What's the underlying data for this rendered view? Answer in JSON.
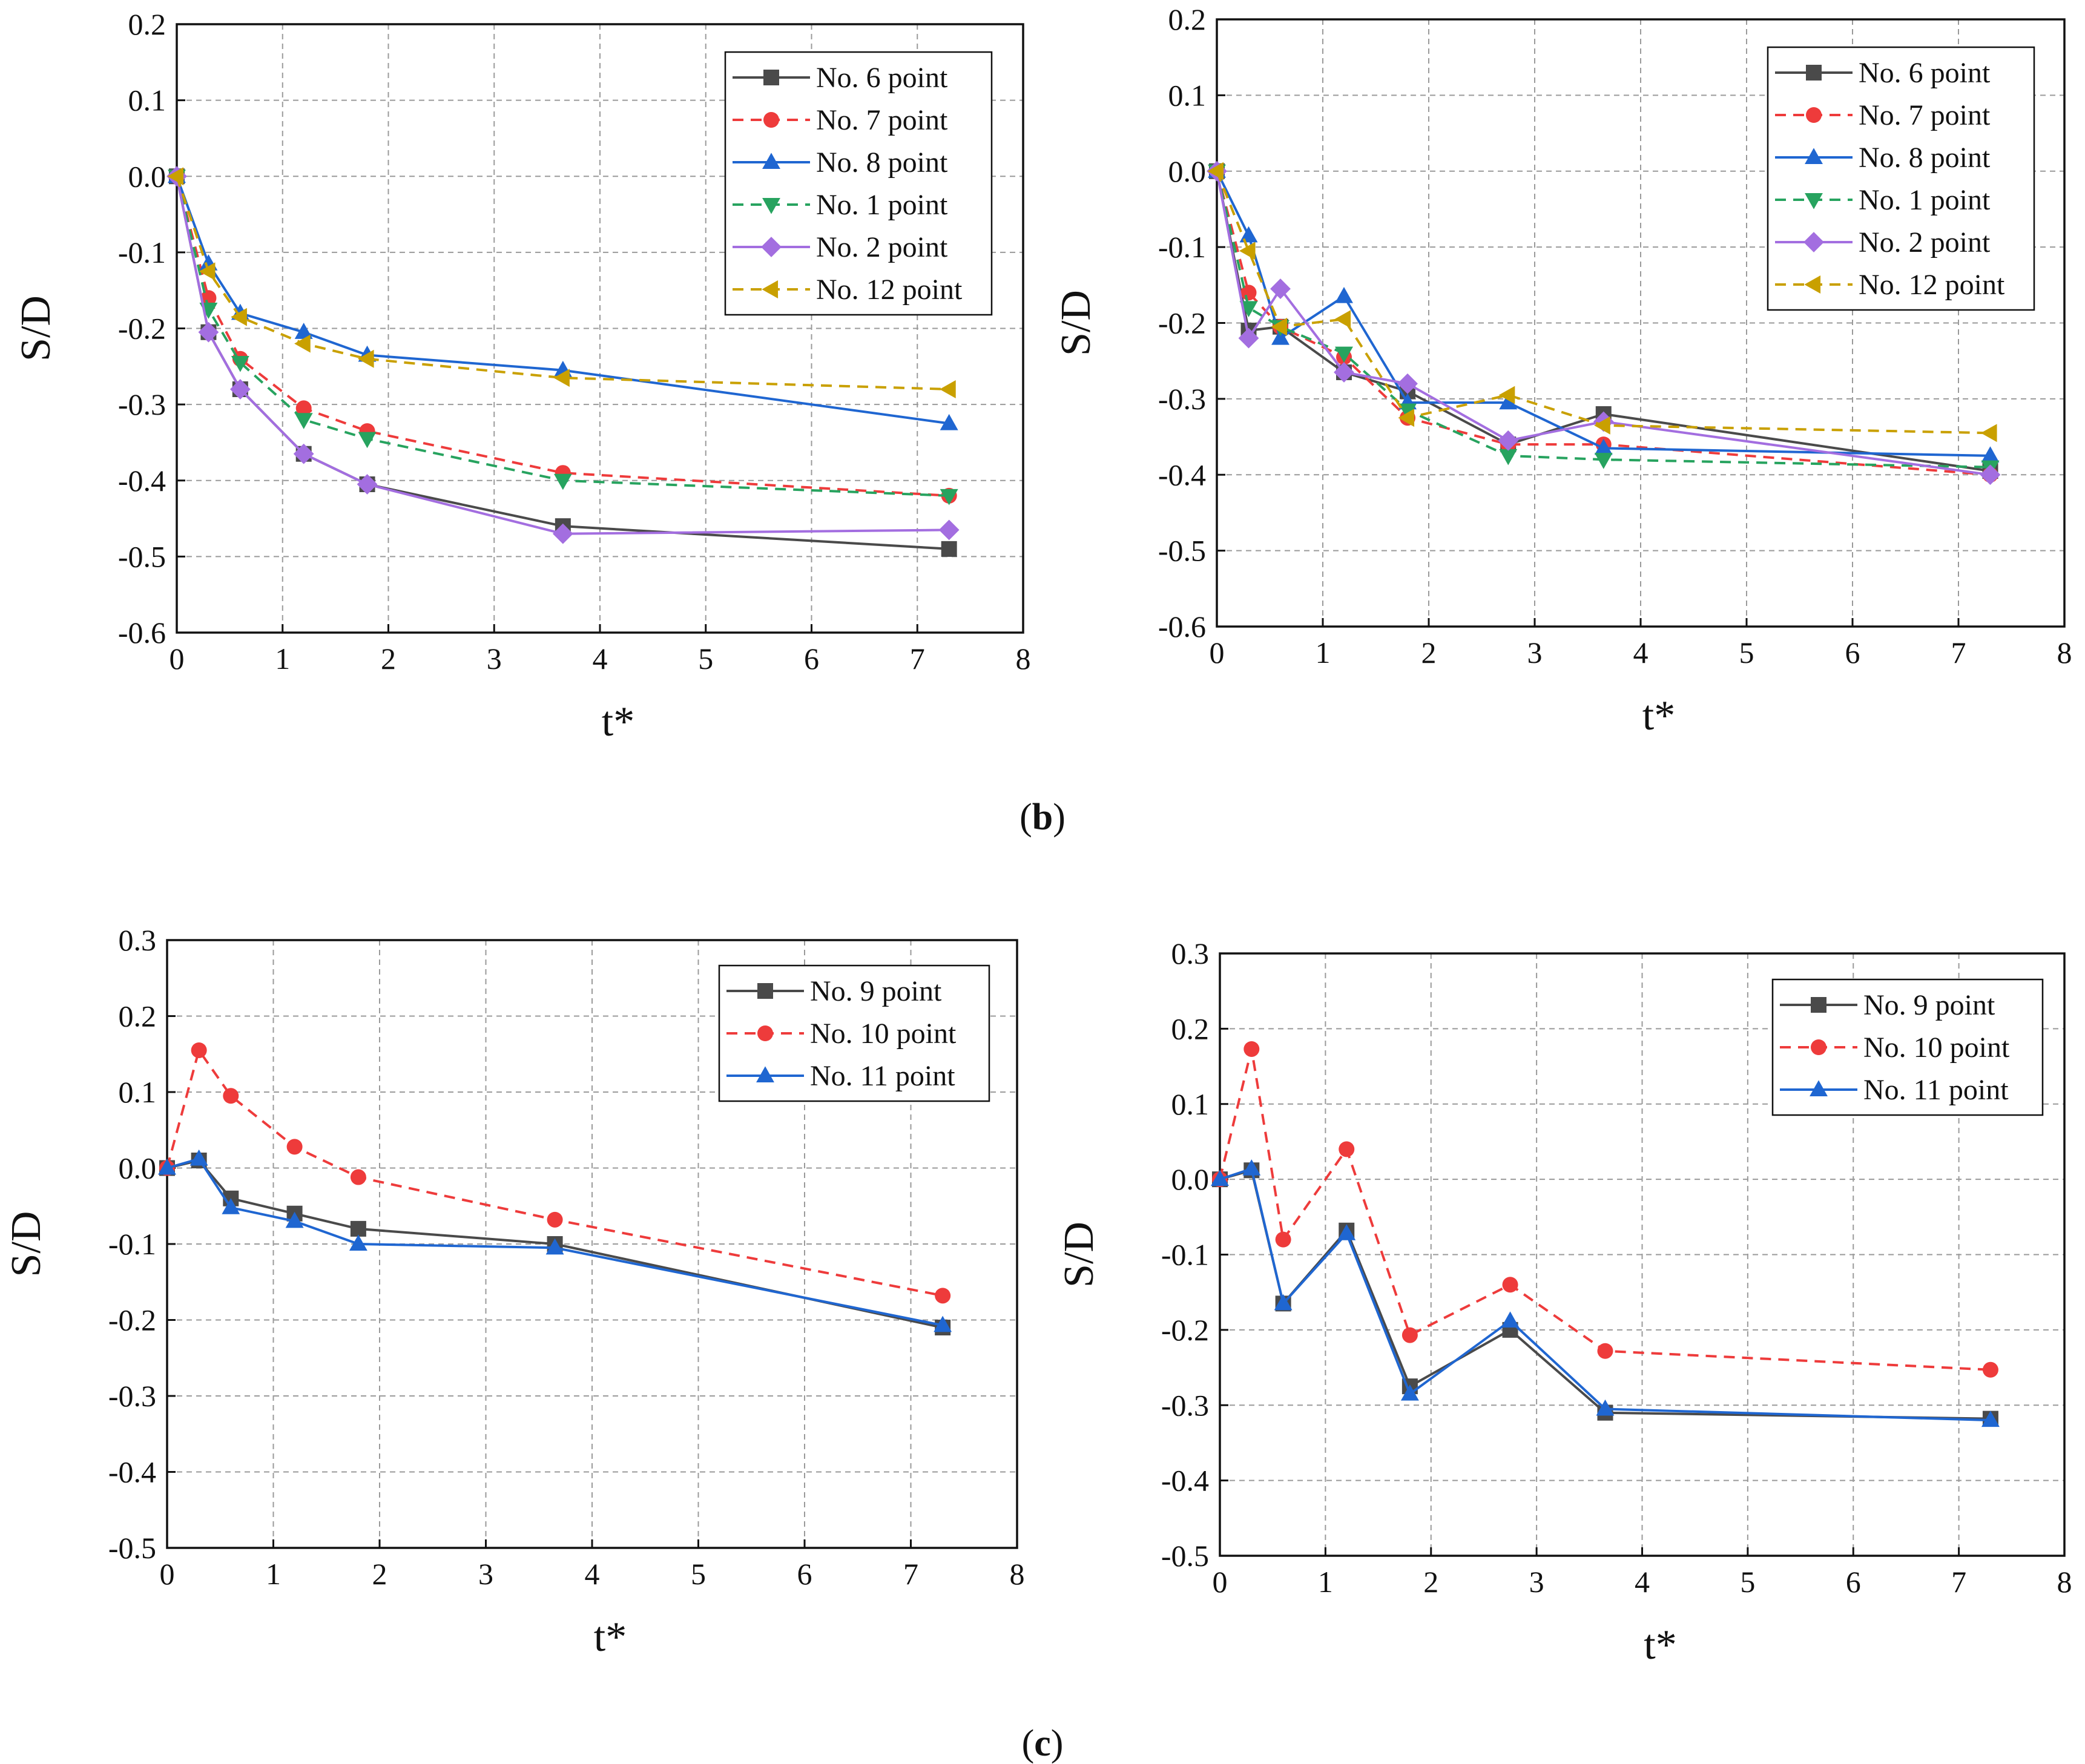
{
  "captions": {
    "b_open": "(",
    "b_letter": "b",
    "b_close": ")",
    "c_open": "(",
    "c_letter": "c",
    "c_close": ")"
  },
  "styles": {
    "No. 6 point": {
      "color": "#4a4a4a",
      "dash": false,
      "marker": "square"
    },
    "No. 7 point": {
      "color": "#ee3b3b",
      "dash": true,
      "marker": "circle",
      "noLine": false
    },
    "No. 8 point": {
      "color": "#1f66d1",
      "dash": false,
      "marker": "triangle-up"
    },
    "No. 1 point": {
      "color": "#27a35f",
      "dash": true,
      "marker": "triangle-down"
    },
    "No. 2 point": {
      "color": "#a36ee0",
      "dash": false,
      "marker": "diamond"
    },
    "No. 12 point": {
      "color": "#c9a000",
      "dash": true,
      "marker": "triangle-left"
    },
    "No. 9 point": {
      "color": "#4a4a4a",
      "dash": false,
      "marker": "square"
    },
    "No. 10 point": {
      "color": "#ee3b3b",
      "dash": true,
      "marker": "circle"
    },
    "No. 11 point": {
      "color": "#1f66d1",
      "dash": false,
      "marker": "triangle-up"
    }
  },
  "chart_data": [
    {
      "type": "line",
      "xlabel": "t*",
      "ylabel": "S/D",
      "xlim": [
        0,
        8
      ],
      "ylim": [
        -0.6,
        0.2
      ],
      "xticks": [
        "0",
        "1",
        "2",
        "3",
        "4",
        "5",
        "6",
        "7",
        "8"
      ],
      "yticks": [
        "0.2",
        "0.1",
        "0.0",
        "-0.1",
        "-0.2",
        "-0.3",
        "-0.4",
        "-0.5",
        "-0.6"
      ],
      "grid": true,
      "legend": "top-right",
      "series": [
        {
          "name": "No. 6 point",
          "x": [
            0,
            0.3,
            0.6,
            1.2,
            1.8,
            3.65,
            7.3
          ],
          "y": [
            0,
            -0.205,
            -0.28,
            -0.365,
            -0.405,
            -0.46,
            -0.49
          ]
        },
        {
          "name": "No. 7 point",
          "x": [
            0,
            0.3,
            0.6,
            1.2,
            1.8,
            3.65,
            7.3
          ],
          "y": [
            0,
            -0.16,
            -0.24,
            -0.305,
            -0.335,
            -0.39,
            -0.42
          ]
        },
        {
          "name": "No. 8 point",
          "x": [
            0,
            0.3,
            0.6,
            1.2,
            1.8,
            3.65,
            7.3
          ],
          "y": [
            0,
            -0.115,
            -0.18,
            -0.205,
            -0.235,
            -0.255,
            -0.325
          ]
        },
        {
          "name": "No. 1 point",
          "x": [
            0,
            0.3,
            0.6,
            1.2,
            1.8,
            3.65,
            7.3
          ],
          "y": [
            0,
            -0.175,
            -0.245,
            -0.32,
            -0.345,
            -0.4,
            -0.42
          ]
        },
        {
          "name": "No. 2 point",
          "x": [
            0,
            0.3,
            0.6,
            1.2,
            1.8,
            3.65,
            7.3
          ],
          "y": [
            0,
            -0.205,
            -0.28,
            -0.365,
            -0.405,
            -0.47,
            -0.465
          ]
        },
        {
          "name": "No. 12 point",
          "x": [
            0,
            0.3,
            0.6,
            1.2,
            1.8,
            3.65,
            7.3
          ],
          "y": [
            0,
            -0.125,
            -0.185,
            -0.22,
            -0.24,
            -0.265,
            -0.28
          ]
        }
      ]
    },
    {
      "type": "line",
      "xlabel": "t*",
      "ylabel": "S/D",
      "xlim": [
        0,
        8
      ],
      "ylim": [
        -0.6,
        0.2
      ],
      "xticks": [
        "0",
        "1",
        "2",
        "3",
        "4",
        "5",
        "6",
        "7",
        "8"
      ],
      "yticks": [
        "0.2",
        "0.1",
        "0.0",
        "-0.1",
        "-0.2",
        "-0.3",
        "-0.4",
        "-0.5",
        "-0.6"
      ],
      "grid": true,
      "legend": "top-right",
      "series": [
        {
          "name": "No. 6 point",
          "x": [
            0,
            0.3,
            0.6,
            1.2,
            1.8,
            2.75,
            3.65,
            7.3
          ],
          "y": [
            0,
            -0.21,
            -0.205,
            -0.265,
            -0.29,
            -0.36,
            -0.32,
            -0.395
          ]
        },
        {
          "name": "No. 7 point",
          "x": [
            0,
            0.3,
            0.6,
            1.2,
            1.8,
            2.75,
            3.65,
            7.3
          ],
          "y": [
            0,
            -0.16,
            -0.205,
            -0.245,
            -0.325,
            -0.36,
            -0.36,
            -0.4
          ]
        },
        {
          "name": "No. 8 point",
          "x": [
            0,
            0.3,
            0.6,
            1.2,
            1.8,
            2.75,
            3.65,
            7.3
          ],
          "y": [
            0,
            -0.085,
            -0.22,
            -0.165,
            -0.305,
            -0.305,
            -0.365,
            -0.375
          ]
        },
        {
          "name": "No. 1 point",
          "x": [
            0,
            0.3,
            0.6,
            1.2,
            1.8,
            2.75,
            3.65,
            7.3
          ],
          "y": [
            0,
            -0.18,
            -0.205,
            -0.24,
            -0.315,
            -0.375,
            -0.38,
            -0.39
          ]
        },
        {
          "name": "No. 2 point",
          "x": [
            0,
            0.3,
            0.6,
            1.2,
            1.8,
            2.75,
            3.65,
            7.3
          ],
          "y": [
            0,
            -0.22,
            -0.155,
            -0.265,
            -0.28,
            -0.355,
            -0.33,
            -0.4
          ]
        },
        {
          "name": "No. 12 point",
          "x": [
            0,
            0.3,
            0.6,
            1.2,
            1.8,
            2.75,
            3.65,
            7.3
          ],
          "y": [
            0,
            -0.105,
            -0.205,
            -0.195,
            -0.325,
            -0.295,
            -0.335,
            -0.345
          ]
        }
      ]
    },
    {
      "type": "line",
      "xlabel": "t*",
      "ylabel": "S/D",
      "xlim": [
        0,
        8
      ],
      "ylim": [
        -0.5,
        0.3
      ],
      "xticks": [
        "0",
        "1",
        "2",
        "3",
        "4",
        "5",
        "6",
        "7",
        "8"
      ],
      "yticks": [
        "0.3",
        "0.2",
        "0.1",
        "0.0",
        "-0.1",
        "-0.2",
        "-0.3",
        "-0.4",
        "-0.5"
      ],
      "grid": true,
      "legend": "top-right",
      "series": [
        {
          "name": "No. 9 point",
          "x": [
            0,
            0.3,
            0.6,
            1.2,
            1.8,
            3.65,
            7.3
          ],
          "y": [
            0,
            0.01,
            -0.04,
            -0.06,
            -0.08,
            -0.1,
            -0.21
          ]
        },
        {
          "name": "No. 10 point",
          "x": [
            0,
            0.3,
            0.6,
            1.2,
            1.8,
            3.65,
            7.3
          ],
          "y": [
            0,
            0.155,
            0.095,
            0.028,
            -0.012,
            -0.068,
            -0.168
          ]
        },
        {
          "name": "No. 11 point",
          "x": [
            0,
            0.3,
            0.6,
            1.2,
            1.8,
            3.65,
            7.3
          ],
          "y": [
            0,
            0.012,
            -0.052,
            -0.07,
            -0.1,
            -0.105,
            -0.207
          ]
        }
      ]
    },
    {
      "type": "line",
      "xlabel": "t*",
      "ylabel": "S/D",
      "xlim": [
        0,
        8
      ],
      "ylim": [
        -0.5,
        0.3
      ],
      "xticks": [
        "0",
        "1",
        "2",
        "3",
        "4",
        "5",
        "6",
        "7",
        "8"
      ],
      "yticks": [
        "0.3",
        "0.2",
        "0.1",
        "0.0",
        "-0.1",
        "-0.2",
        "-0.3",
        "-0.4",
        "-0.5"
      ],
      "grid": true,
      "legend": "top-right",
      "series": [
        {
          "name": "No. 9 point",
          "x": [
            0,
            0.3,
            0.6,
            1.2,
            1.8,
            2.75,
            3.65,
            7.3
          ],
          "y": [
            0,
            0.012,
            -0.165,
            -0.068,
            -0.275,
            -0.2,
            -0.31,
            -0.318
          ]
        },
        {
          "name": "No. 10 point",
          "x": [
            0,
            0.3,
            0.6,
            1.2,
            1.8,
            2.75,
            3.65,
            7.3
          ],
          "y": [
            0,
            0.173,
            -0.08,
            0.04,
            -0.207,
            -0.14,
            -0.228,
            -0.253
          ]
        },
        {
          "name": "No. 11 point",
          "x": [
            0,
            0.3,
            0.6,
            1.2,
            1.8,
            2.75,
            3.65,
            7.3
          ],
          "y": [
            0,
            0.014,
            -0.165,
            -0.072,
            -0.285,
            -0.188,
            -0.305,
            -0.32
          ]
        }
      ]
    }
  ]
}
